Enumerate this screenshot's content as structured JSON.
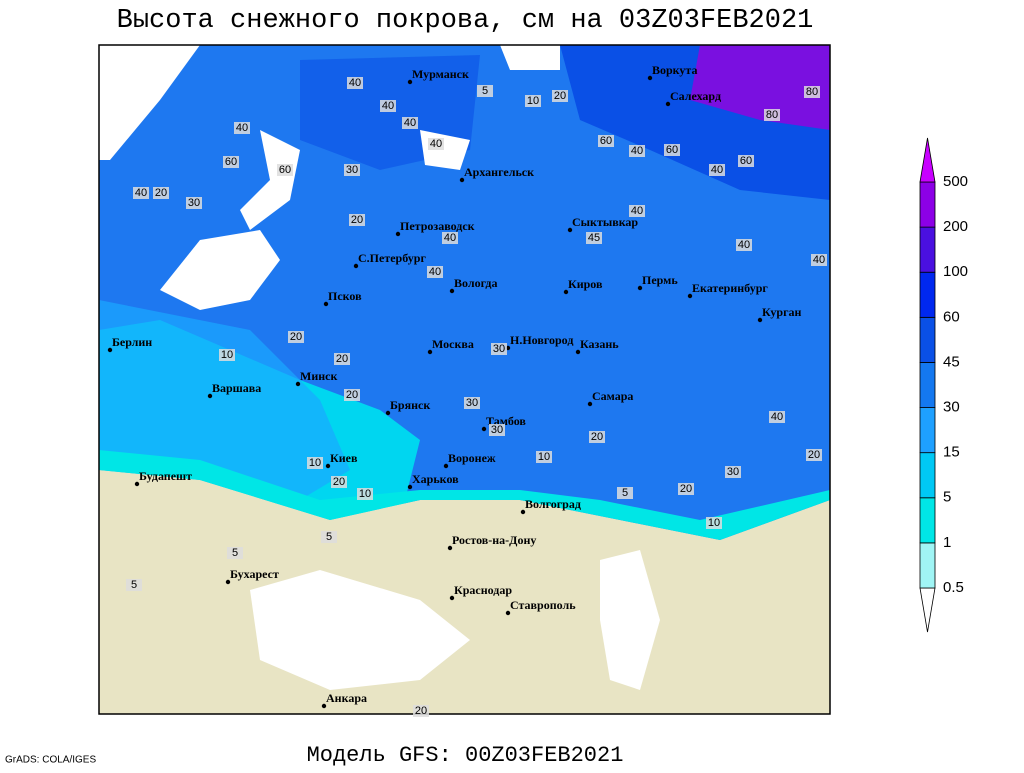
{
  "title": "Высота снежного покрова, см на 03Z03FEB2021",
  "footer": "Модель GFS: 00Z03FEB2021",
  "credit": "GrADS: COLA/IGES",
  "cities": [
    "Мурманск",
    "Воркута",
    "Салехард",
    "Архангельск",
    "Петрозаводск",
    "Сыктывкар",
    "С.Петербург",
    "Вологда",
    "Киров",
    "Пермь",
    "Екатеринбург",
    "Курган",
    "Псков",
    "Берлин",
    "Москва",
    "Н.Новгород",
    "Казань",
    "Минск",
    "Варшава",
    "Самара",
    "Брянск",
    "Тамбов",
    "Киев",
    "Воронеж",
    "Будапешт",
    "Харьков",
    "Волгоград",
    "Ростов-на-Дону",
    "Бухарест",
    "Краснодар",
    "Ставрополь",
    "Анкара"
  ],
  "contour_labels": [
    40,
    40,
    20,
    10,
    5,
    80,
    80,
    60,
    40,
    60,
    60,
    40,
    60,
    40,
    20,
    30,
    40,
    60,
    40,
    40,
    30,
    20,
    40,
    40,
    45,
    40,
    40,
    40,
    20,
    20,
    30,
    10,
    20,
    30,
    40,
    30,
    20,
    10,
    20,
    30,
    20,
    10,
    5,
    10,
    5,
    5,
    5,
    20,
    10,
    20
  ],
  "legend": {
    "levels": [
      0.5,
      1,
      5,
      15,
      30,
      45,
      60,
      100,
      200,
      500
    ],
    "colors": [
      "#ffffff",
      "#a0f5f5",
      "#00e6e6",
      "#00c8f5",
      "#1ea0ff",
      "#1478f0",
      "#0a50e6",
      "#0028f0",
      "#4a10e0",
      "#8c00e6",
      "#c800ff"
    ]
  }
}
